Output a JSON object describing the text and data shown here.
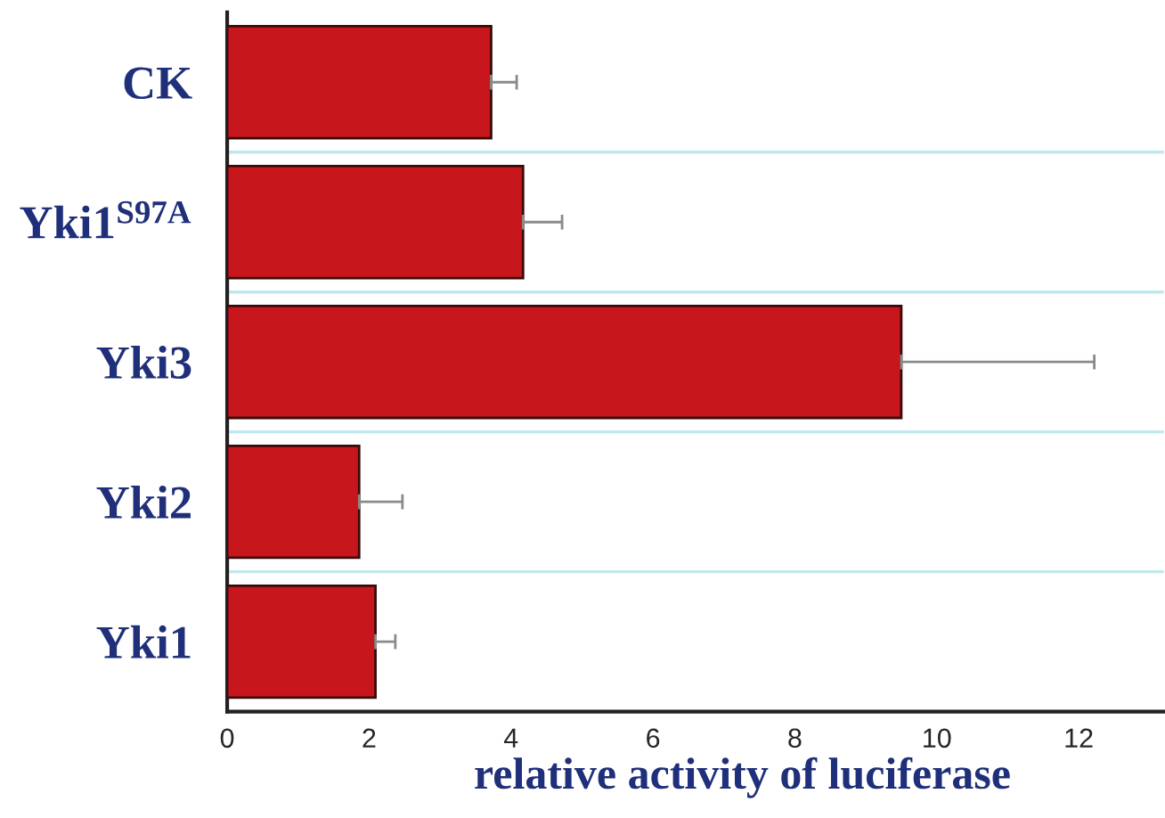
{
  "chart_data": {
    "type": "bar",
    "orientation": "horizontal",
    "xlabel": "relative activity of luciferase",
    "categories": [
      "CK",
      "Yki1$^{S97A}$",
      "Yki3",
      "Yki2",
      "Yki1"
    ],
    "series": [
      {
        "color": "#c8161d",
        "values": [
          3.72,
          4.17,
          9.5,
          1.86,
          2.09
        ],
        "errors": [
          [
            3.72,
            4.08
          ],
          [
            4.17,
            4.72
          ],
          [
            9.5,
            12.22
          ],
          [
            1.86,
            2.47
          ],
          [
            2.09,
            2.37
          ]
        ]
      }
    ],
    "xlim": [
      0,
      13.2
    ],
    "xticks": [
      0,
      2,
      4,
      6,
      8,
      10,
      12
    ],
    "grid": "y",
    "legend": false
  }
}
